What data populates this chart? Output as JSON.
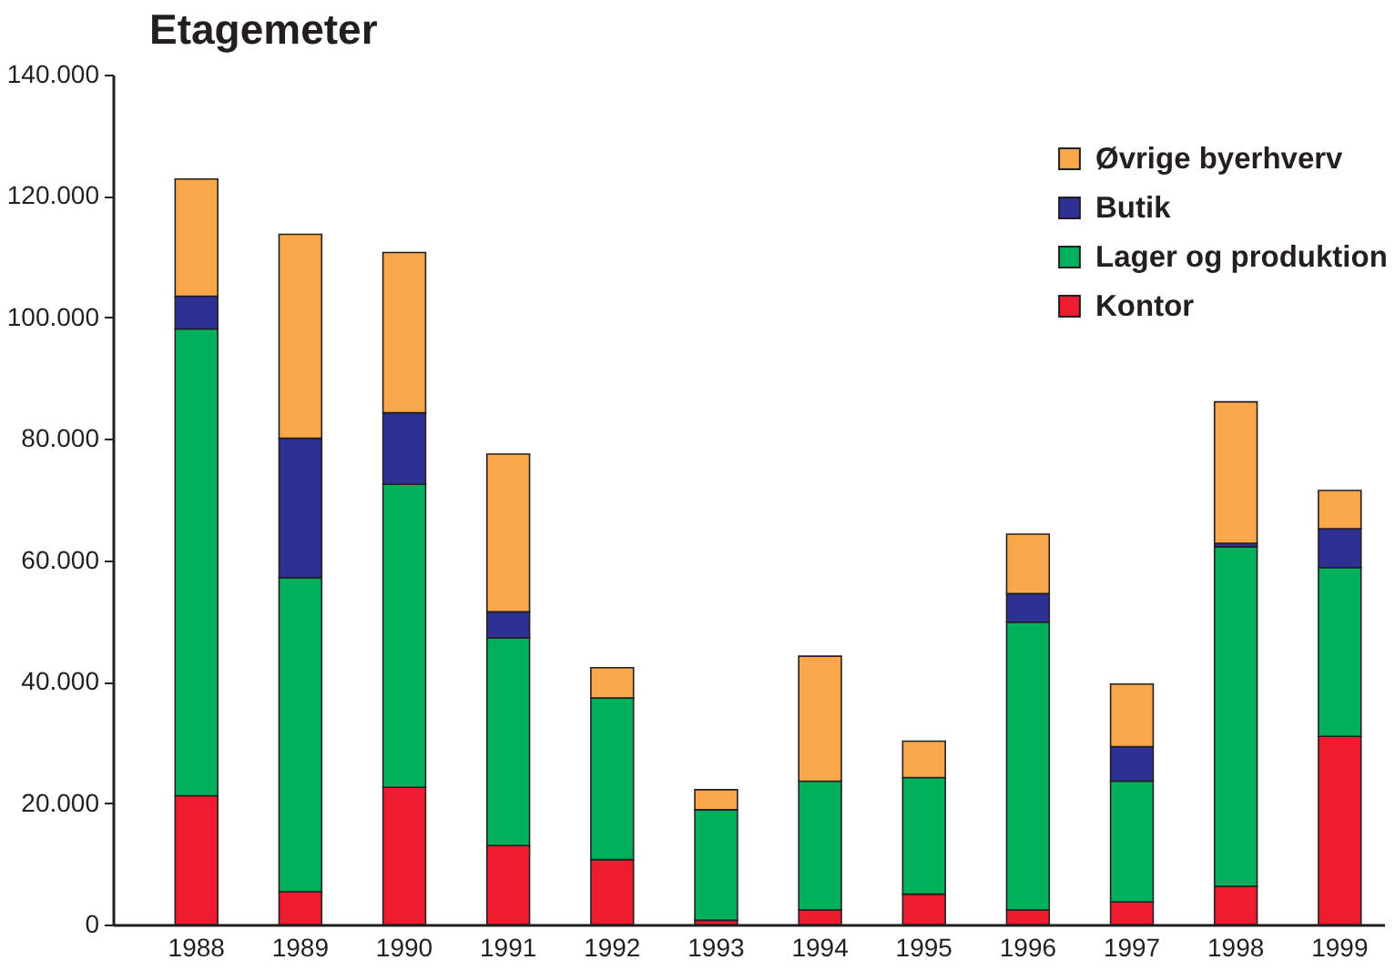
{
  "chart_data": {
    "type": "bar",
    "title": "Etagemeter",
    "categories": [
      "1988",
      "1989",
      "1990",
      "1991",
      "1992",
      "1993",
      "1994",
      "1995",
      "1996",
      "1997",
      "1998",
      "1999"
    ],
    "series": [
      {
        "name": "Kontor",
        "color": "#ed1c2e",
        "values": [
          21200,
          5400,
          22600,
          13000,
          10700,
          700,
          2400,
          5000,
          2400,
          3700,
          6300,
          31000
        ]
      },
      {
        "name": "Lager og produktion",
        "color": "#00b05a",
        "values": [
          76900,
          51700,
          49900,
          34200,
          26600,
          18200,
          21200,
          19200,
          47400,
          19900,
          55900,
          27800
        ]
      },
      {
        "name": "Butik",
        "color": "#2e3192",
        "values": [
          5400,
          23000,
          11800,
          4300,
          null,
          null,
          null,
          null,
          4700,
          5700,
          600,
          6400
        ]
      },
      {
        "name": "Øvrige byerhverv",
        "color": "#f9a74b",
        "values": [
          19300,
          33600,
          26400,
          26000,
          5000,
          3300,
          20600,
          6000,
          9800,
          10300,
          23300,
          6300
        ]
      }
    ],
    "stacked": true,
    "ylim": [
      0,
      140000
    ],
    "yticks": [
      0,
      {
        "value": 20000,
        "label": "20.000"
      },
      {
        "value": 40000,
        "label": "40.000"
      },
      {
        "value": 60000,
        "label": "60.000"
      },
      {
        "value": 80000,
        "label": "80.000"
      },
      {
        "value": 100000,
        "label": "100.000"
      },
      {
        "value": 120000,
        "label": "120.000"
      },
      {
        "value": 140000,
        "label": "140.000"
      }
    ],
    "grid": false,
    "legend": "top right"
  }
}
